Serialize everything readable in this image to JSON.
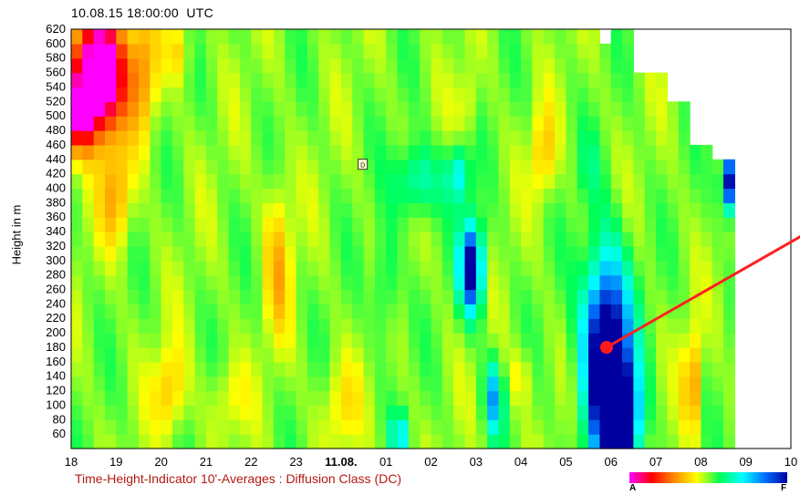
{
  "header": {
    "datetime": "10.08.15 18:00:00",
    "timezone": "UTC"
  },
  "chart_data": {
    "type": "heatmap",
    "title": "",
    "xlabel": "",
    "ylabel": "Height in m",
    "x_ticks": [
      {
        "label": "18",
        "bold": false
      },
      {
        "label": "19",
        "bold": false
      },
      {
        "label": "20",
        "bold": false
      },
      {
        "label": "21",
        "bold": false
      },
      {
        "label": "22",
        "bold": false
      },
      {
        "label": "23",
        "bold": false
      },
      {
        "label": "11.08.",
        "bold": true
      },
      {
        "label": "01",
        "bold": false
      },
      {
        "label": "02",
        "bold": false
      },
      {
        "label": "03",
        "bold": false
      },
      {
        "label": "04",
        "bold": false
      },
      {
        "label": "05",
        "bold": false
      },
      {
        "label": "06",
        "bold": false
      },
      {
        "label": "07",
        "bold": false
      },
      {
        "label": "08",
        "bold": false
      },
      {
        "label": "09",
        "bold": false
      },
      {
        "label": "10",
        "bold": false
      }
    ],
    "y_ticks": [
      620,
      600,
      580,
      560,
      540,
      520,
      500,
      480,
      460,
      440,
      420,
      400,
      380,
      360,
      340,
      320,
      300,
      280,
      260,
      240,
      220,
      200,
      180,
      160,
      140,
      120,
      100,
      80,
      60
    ],
    "xlim_hours": [
      0,
      16
    ],
    "ylim": [
      40,
      620
    ],
    "value_range": [
      0,
      1
    ],
    "scale_low_label": "A",
    "scale_high_label": "F",
    "colors": [
      "#ff00ff",
      "#ff0000",
      "#ff8c00",
      "#ffff00",
      "#00ff55",
      "#00ffff",
      "#0070ff",
      "#0000a0"
    ],
    "cell_width_hours": 0.25,
    "cell_height_m": 20,
    "features": [
      {
        "x": 0.6,
        "y": 560,
        "sx": 0.55,
        "sy": 80,
        "v": -0.72
      },
      {
        "x": 0.15,
        "y": 500,
        "sx": 0.35,
        "sy": 50,
        "v": -0.35
      },
      {
        "x": 1.6,
        "y": 560,
        "sx": 0.35,
        "sy": 90,
        "v": -0.18
      },
      {
        "x": 1.0,
        "y": 390,
        "sx": 0.35,
        "sy": 70,
        "v": -0.18
      },
      {
        "x": 2.2,
        "y": 120,
        "sx": 0.35,
        "sy": 60,
        "v": -0.15
      },
      {
        "x": 2.4,
        "y": 590,
        "sx": 0.25,
        "sy": 40,
        "v": -0.12
      },
      {
        "x": 4.6,
        "y": 300,
        "sx": 0.3,
        "sy": 110,
        "v": -0.15
      },
      {
        "x": 3.5,
        "y": 110,
        "sx": 0.4,
        "sy": 50,
        "v": -0.08
      },
      {
        "x": 6.0,
        "y": 100,
        "sx": 0.4,
        "sy": 60,
        "v": -0.1
      },
      {
        "x": 10.5,
        "y": 450,
        "sx": 0.25,
        "sy": 60,
        "v": -0.15
      },
      {
        "x": 10.0,
        "y": 140,
        "sx": 0.3,
        "sy": 40,
        "v": -0.08
      },
      {
        "x": 13.8,
        "y": 130,
        "sx": 0.18,
        "sy": 70,
        "v": -0.22
      },
      {
        "x": 8.8,
        "y": 520,
        "sx": 0.2,
        "sy": 50,
        "v": -0.08
      },
      {
        "x": 7.7,
        "y": 410,
        "sx": 0.5,
        "sy": 50,
        "v": 0.18
      },
      {
        "x": 8.6,
        "y": 420,
        "sx": 0.25,
        "sy": 40,
        "v": 0.22
      },
      {
        "x": 7.0,
        "y": 270,
        "sx": 0.25,
        "sy": 80,
        "v": 0.12
      },
      {
        "x": 8.9,
        "y": 290,
        "sx": 0.25,
        "sy": 60,
        "v": 0.55
      },
      {
        "x": 9.4,
        "y": 110,
        "sx": 0.2,
        "sy": 50,
        "v": 0.28
      },
      {
        "x": 11.9,
        "y": 170,
        "sx": 0.5,
        "sy": 130,
        "v": 0.68
      },
      {
        "x": 12.2,
        "y": 80,
        "sx": 0.4,
        "sy": 70,
        "v": 0.62
      },
      {
        "x": 14.6,
        "y": 410,
        "sx": 0.15,
        "sy": 40,
        "v": 0.55
      },
      {
        "x": 7.3,
        "y": 60,
        "sx": 0.2,
        "sy": 30,
        "v": 0.2
      },
      {
        "x": 11.5,
        "y": 430,
        "sx": 0.3,
        "sy": 50,
        "v": 0.06
      }
    ],
    "annotation_label": "D",
    "marker_color": "#ff1a1a",
    "pointer_line_color": "#ff2020"
  },
  "footer": {
    "caption": "Time-Height-Indicator 10'-Averages : Diffusion Class (DC)"
  }
}
